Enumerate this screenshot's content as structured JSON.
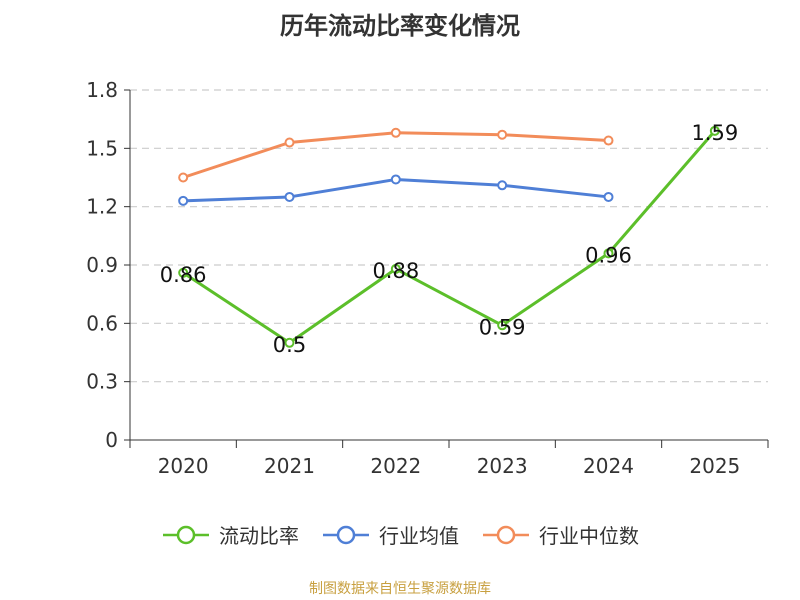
{
  "chart_data": {
    "type": "line",
    "title": "历年流动比率变化情况",
    "categories": [
      "2020",
      "2021",
      "2022",
      "2023",
      "2024",
      "2025"
    ],
    "yticks": [
      "0",
      "0.3",
      "0.6",
      "0.9",
      "1.2",
      "1.5",
      "1.8"
    ],
    "ylim": [
      0,
      1.8
    ],
    "series": [
      {
        "name": "流动比率",
        "color": "#5cbf2a",
        "values": [
          0.86,
          0.5,
          0.88,
          0.59,
          0.96,
          1.59
        ],
        "labels": [
          "0.86",
          "0.5",
          "0.88",
          "0.59",
          "0.96",
          "1.59"
        ]
      },
      {
        "name": "行业均值",
        "color": "#4f7fd6",
        "values": [
          1.23,
          1.25,
          1.34,
          1.31,
          1.25,
          null
        ]
      },
      {
        "name": "行业中位数",
        "color": "#f28c5a",
        "values": [
          1.35,
          1.53,
          1.58,
          1.57,
          1.54,
          null
        ]
      }
    ],
    "legend_position": "bottom"
  },
  "source": "制图数据来自恒生聚源数据库"
}
